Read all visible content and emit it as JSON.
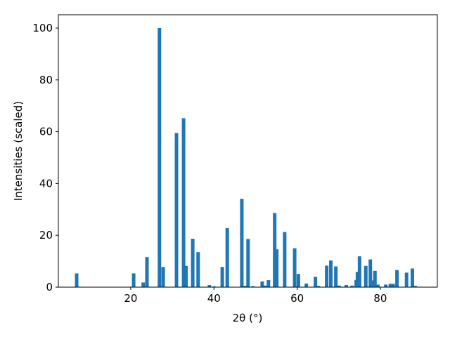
{
  "chart_data": {
    "type": "bar",
    "xlabel": "2θ (°)",
    "ylabel": "Intensities (scaled)",
    "x": [
      7.0,
      20.7,
      23.0,
      23.9,
      26.9,
      27.8,
      31.0,
      32.7,
      33.3,
      34.9,
      36.2,
      38.9,
      40.0,
      42.0,
      43.2,
      46.7,
      47.4,
      48.2,
      49.4,
      51.6,
      52.4,
      53.1,
      54.6,
      55.1,
      57.0,
      59.4,
      60.3,
      62.2,
      64.4,
      65.1,
      67.1,
      68.1,
      69.3,
      70.1,
      71.8,
      73.2,
      74.2,
      74.5,
      75.0,
      76.5,
      77.6,
      78.2,
      78.7,
      79.4,
      81.3,
      82.4,
      83.1,
      84.0,
      86.3,
      87.7,
      88.4
    ],
    "values": [
      5.3,
      5.3,
      1.8,
      11.6,
      100,
      7.8,
      59.5,
      65.2,
      8.2,
      18.7,
      13.5,
      0.8,
      0.3,
      7.8,
      22.8,
      34.1,
      0.5,
      18.6,
      0.4,
      2.2,
      0.6,
      2.7,
      28.6,
      14.6,
      21.3,
      15.0,
      5.1,
      1.4,
      4.0,
      0.5,
      8.3,
      10.3,
      8.0,
      0.6,
      0.8,
      0.6,
      2.8,
      5.9,
      11.9,
      8.2,
      10.7,
      2.6,
      6.3,
      1.0,
      1.0,
      1.3,
      1.3,
      6.6,
      5.6,
      7.2,
      0.5
    ],
    "color": "#1f77b4",
    "xlim": [
      2.6,
      93.7
    ],
    "ylim": [
      0,
      105.15
    ],
    "xticks": [
      20,
      40,
      60,
      80
    ],
    "yticks": [
      0,
      20,
      40,
      60,
      80,
      100
    ]
  }
}
